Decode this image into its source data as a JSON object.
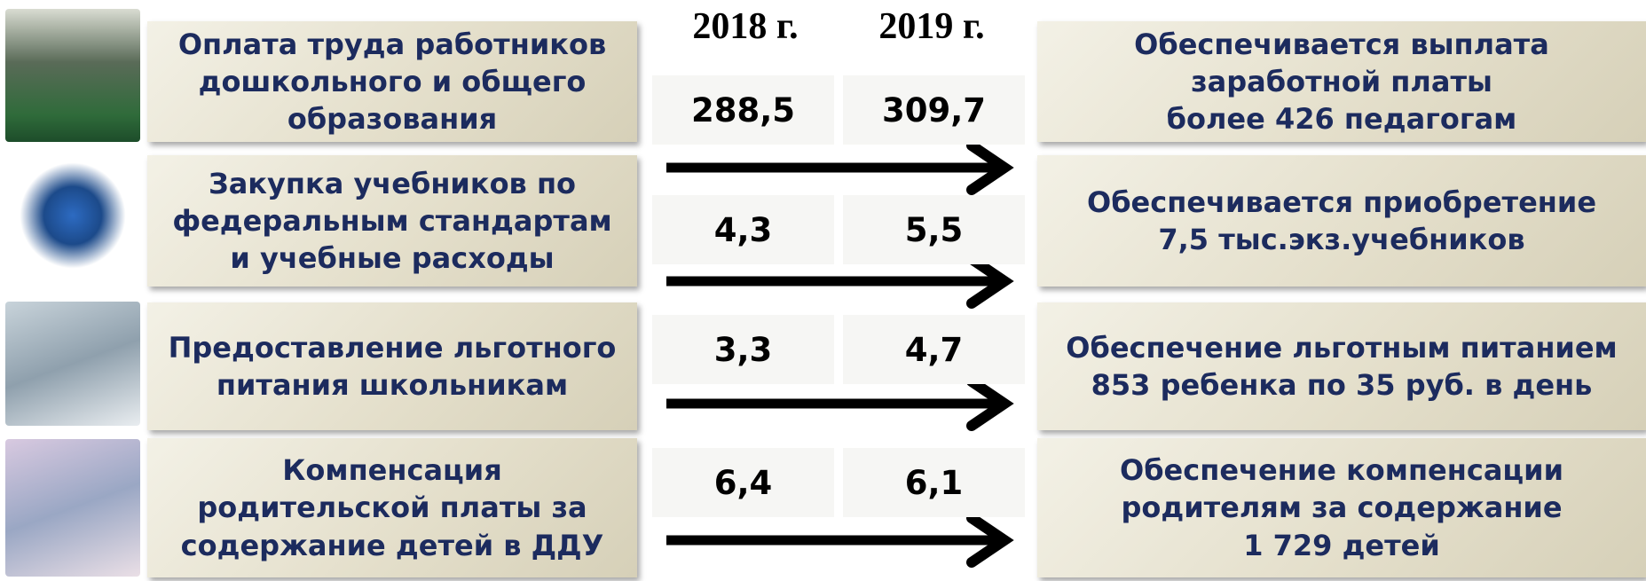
{
  "header": {
    "years": [
      "2018 г.",
      "2019 г."
    ]
  },
  "rows": [
    {
      "label": [
        "Оплата труда работников",
        "дошкольного и общего",
        "образования"
      ],
      "values": [
        "288,5",
        "309,7"
      ],
      "result": [
        "Обеспечивается выплата",
        "заработной платы",
        "более 426 педагогам"
      ]
    },
    {
      "label": [
        "Закупка учебников по",
        "федеральным стандартам",
        "и учебные расходы"
      ],
      "values": [
        "4,3",
        "5,5"
      ],
      "result": [
        "Обеспечивается приобретение",
        "7,5 тыс.экз.учебников"
      ]
    },
    {
      "label": [
        "Предоставление льготного",
        "питания школьникам"
      ],
      "values": [
        "3,3",
        "4,7"
      ],
      "result": [
        "Обеспечение льготным питанием",
        "853 ребенка по 35 руб. в день"
      ]
    },
    {
      "label": [
        "Компенсация",
        "родительской платы за",
        "содержание детей в ДДУ"
      ],
      "values": [
        "6,4",
        "6,1"
      ],
      "result": [
        "Обеспечение компенсации",
        "родителям за содержание",
        "1 729 детей"
      ]
    }
  ]
}
